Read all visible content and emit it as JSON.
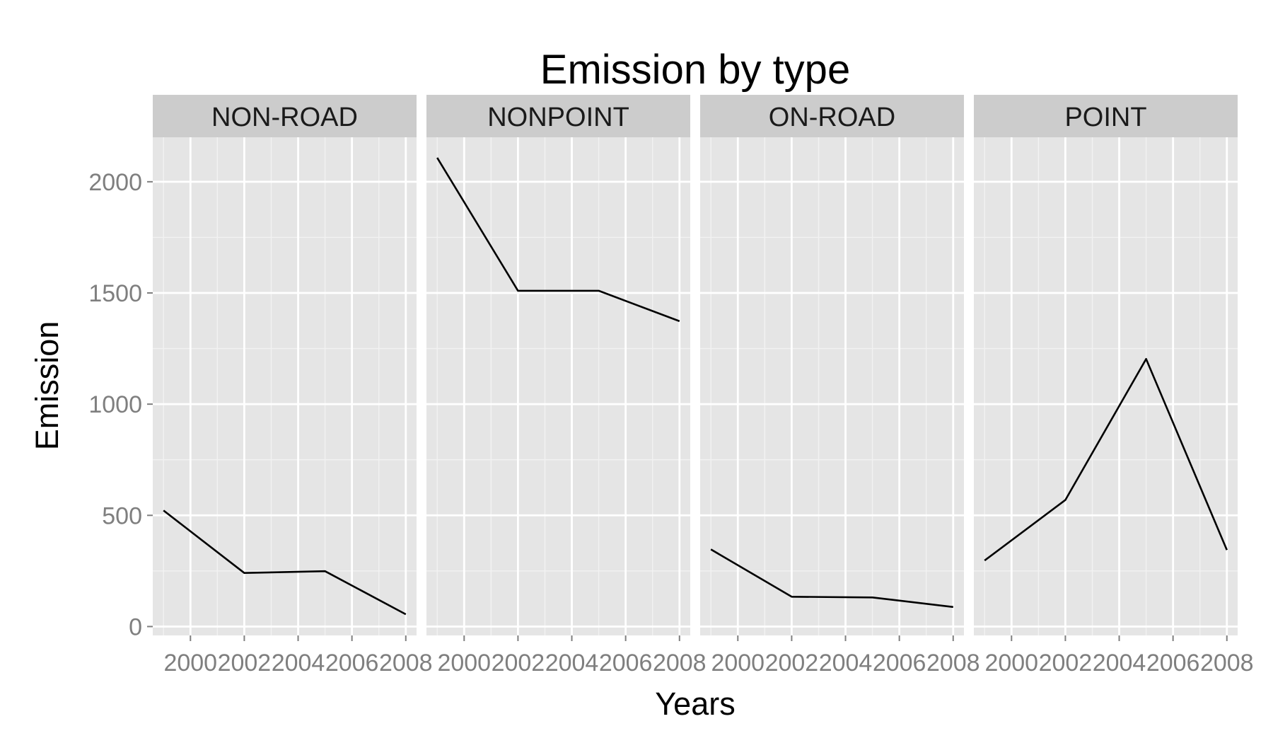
{
  "chart_data": {
    "type": "line",
    "title": "Emission by type",
    "xlabel": "Years",
    "ylabel": "Emission",
    "x": [
      1999,
      2002,
      2005,
      2008
    ],
    "xlim": [
      1998.6,
      2008.4
    ],
    "ylim": [
      -40,
      2200
    ],
    "x_ticks": [
      2000,
      2002,
      2004,
      2006,
      2008
    ],
    "x_tick_labels": [
      "2000",
      "2002",
      "2004",
      "2006",
      "2008"
    ],
    "y_ticks": [
      0,
      500,
      1000,
      1500,
      2000
    ],
    "y_tick_labels": [
      "0",
      "500",
      "1000",
      "1500",
      "2000"
    ],
    "grid": true,
    "facets": [
      {
        "name": "NON-ROAD",
        "values": [
          522,
          241,
          249,
          55
        ]
      },
      {
        "name": "NONPOINT",
        "values": [
          2108,
          1510,
          1510,
          1373
        ]
      },
      {
        "name": "ON-ROAD",
        "values": [
          347,
          134,
          131,
          88
        ]
      },
      {
        "name": "POINT",
        "values": [
          297,
          569,
          1203,
          344
        ]
      }
    ],
    "colors": {
      "panel_bg": "#e5e5e5",
      "strip_bg": "#cccccc",
      "grid_major": "#ffffff",
      "grid_minor": "#f2f2f2",
      "line": "#000000",
      "tick_label": "#7f7f7f"
    }
  }
}
